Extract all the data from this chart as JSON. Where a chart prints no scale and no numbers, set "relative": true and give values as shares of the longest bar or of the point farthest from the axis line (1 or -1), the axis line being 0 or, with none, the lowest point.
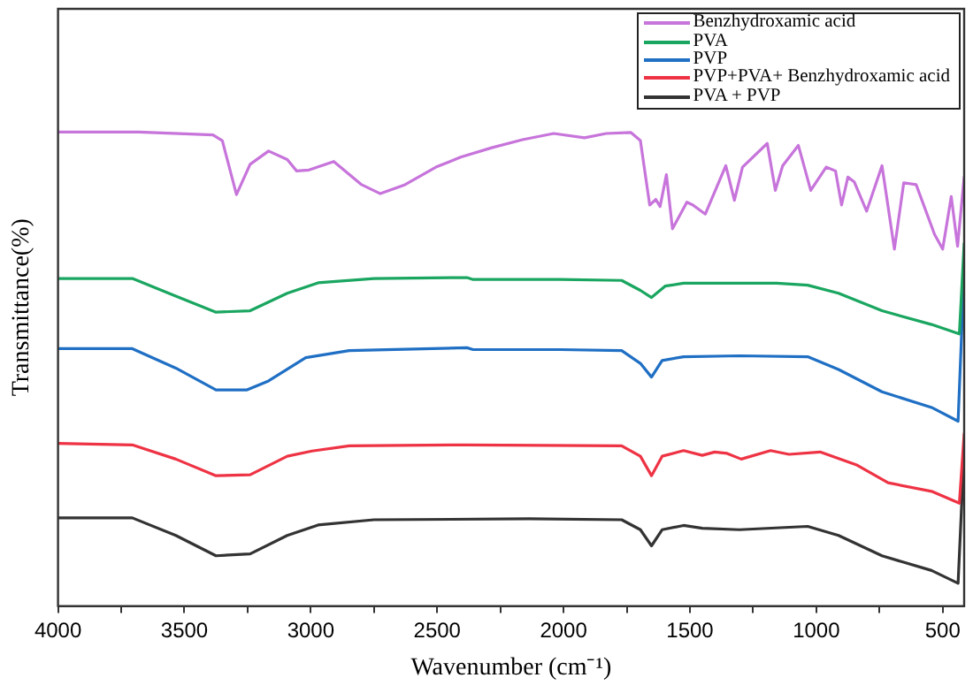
{
  "chart_data": {
    "type": "line",
    "xlabel": "Wavenumber (cm⁻¹)",
    "ylabel": "Transmittance(%)",
    "relative": true,
    "xlim": [
      4000,
      415
    ],
    "xticks": [
      4000,
      {
        "value": 3750,
        "label": null
      },
      3500,
      {
        "value": 3250,
        "label": null
      },
      3000,
      {
        "value": 2750,
        "label": null
      },
      2500,
      {
        "value": 2250,
        "label": null
      },
      2000,
      {
        "value": 1750,
        "label": null
      },
      1500,
      {
        "value": 1250,
        "label": null
      },
      1000,
      {
        "value": 750,
        "label": null
      },
      500
    ],
    "grid": false,
    "legend": "top right",
    "marker": "none",
    "line_style": "solid",
    "series": [
      {
        "name": "Benzhydroxamic acid",
        "color": "#c774db",
        "x": [
          4000,
          3681,
          3387,
          3350,
          3294,
          3240,
          3167,
          3093,
          3056,
          3007,
          2909,
          2799,
          2725,
          2627,
          2505,
          2407,
          2284,
          2162,
          2039,
          1917,
          1831,
          1733,
          1696,
          1659,
          1635,
          1618,
          1593,
          1569,
          1512,
          1488,
          1439,
          1358,
          1324,
          1292,
          1194,
          1162,
          1133,
          1071,
          1022,
          961,
          924,
          900,
          875,
          850,
          801,
          740,
          691,
          654,
          605,
          532,
          500,
          466,
          441,
          415
        ],
        "values": [
          1.0,
          1.0,
          0.994,
          0.982,
          0.868,
          0.932,
          0.96,
          0.942,
          0.918,
          0.92,
          0.938,
          0.889,
          0.87,
          0.889,
          0.926,
          0.947,
          0.967,
          0.984,
          0.997,
          0.988,
          0.997,
          0.999,
          0.982,
          0.846,
          0.858,
          0.843,
          0.91,
          0.796,
          0.852,
          0.846,
          0.827,
          0.929,
          0.856,
          0.926,
          0.976,
          0.877,
          0.929,
          0.972,
          0.877,
          0.926,
          0.918,
          0.846,
          0.905,
          0.895,
          0.833,
          0.929,
          0.753,
          0.893,
          0.889,
          0.784,
          0.753,
          0.864,
          0.759,
          0.905
        ]
      },
      {
        "name": "PVA",
        "color": "#1aa660",
        "x": [
          4000,
          3706,
          3534,
          3375,
          3240,
          3093,
          2971,
          2750,
          2382,
          2358,
          2015,
          1770,
          1696,
          1652,
          1598,
          1525,
          1157,
          1034,
          912,
          740,
          544,
          434,
          415
        ],
        "values": [
          0.691,
          0.691,
          0.654,
          0.62,
          0.623,
          0.66,
          0.682,
          0.691,
          0.693,
          0.689,
          0.689,
          0.687,
          0.666,
          0.651,
          0.675,
          0.681,
          0.681,
          0.677,
          0.66,
          0.623,
          0.594,
          0.574,
          0.765
        ]
      },
      {
        "name": "PVP",
        "color": "#1f6fc4",
        "x": [
          4000,
          3706,
          3534,
          3375,
          3252,
          3167,
          3020,
          2848,
          2382,
          2358,
          2015,
          1770,
          1696,
          1652,
          1610,
          1525,
          1304,
          1034,
          912,
          740,
          544,
          439,
          415
        ],
        "values": [
          0.543,
          0.543,
          0.502,
          0.456,
          0.456,
          0.475,
          0.524,
          0.539,
          0.545,
          0.541,
          0.541,
          0.539,
          0.512,
          0.483,
          0.518,
          0.526,
          0.528,
          0.526,
          0.499,
          0.452,
          0.419,
          0.39,
          0.709
        ]
      },
      {
        "name": "PVP+PVA+ Benzhydroxamic acid",
        "color": "#ee3344",
        "x": [
          4000,
          3706,
          3534,
          3375,
          3240,
          3093,
          2995,
          2848,
          2382,
          1770,
          1696,
          1652,
          1610,
          1525,
          1451,
          1402,
          1353,
          1297,
          1181,
          1108,
          985,
          838,
          716,
          544,
          434,
          415
        ],
        "values": [
          0.343,
          0.34,
          0.31,
          0.275,
          0.277,
          0.316,
          0.327,
          0.338,
          0.34,
          0.338,
          0.316,
          0.275,
          0.316,
          0.328,
          0.318,
          0.325,
          0.322,
          0.31,
          0.328,
          0.32,
          0.325,
          0.297,
          0.26,
          0.242,
          0.217,
          0.363
        ]
      },
      {
        "name": "PVA + PVP",
        "color": "#333333",
        "x": [
          4000,
          3706,
          3534,
          3375,
          3240,
          3093,
          2971,
          2750,
          2137,
          1770,
          1696,
          1652,
          1610,
          1525,
          1451,
          1304,
          1034,
          912,
          740,
          544,
          439,
          415
        ],
        "values": [
          0.186,
          0.186,
          0.149,
          0.106,
          0.11,
          0.149,
          0.171,
          0.182,
          0.184,
          0.182,
          0.161,
          0.127,
          0.161,
          0.17,
          0.164,
          0.161,
          0.168,
          0.149,
          0.106,
          0.075,
          0.048,
          0.33
        ]
      }
    ]
  }
}
